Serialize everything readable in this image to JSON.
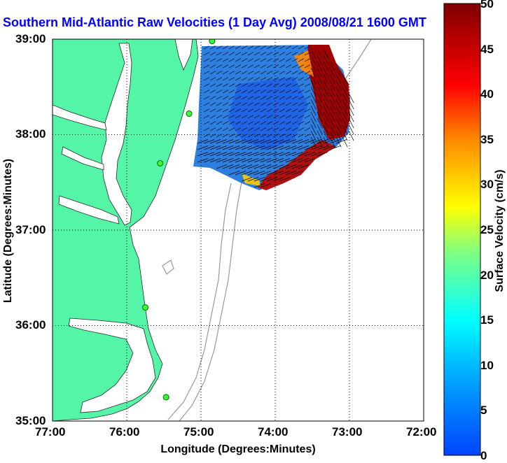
{
  "title": "Southern Mid-Atlantic Raw Velocities (1 Day Avg) 2008/08/21 1600 GMT",
  "x_axis": {
    "label": "Longitude (Degrees:Minutes)",
    "ticks": [
      "77:00",
      "76:00",
      "75:00",
      "74:00",
      "73:00",
      "72:00"
    ]
  },
  "y_axis": {
    "label": "Latitude (Degrees:Minutes)",
    "ticks": [
      "39:00",
      "38:00",
      "37:00",
      "36:00",
      "35:00"
    ]
  },
  "colorbar": {
    "label": "Surface Velocity (cm/s)",
    "min": 0,
    "max": 50,
    "ticks": [
      "50",
      "45",
      "40",
      "35",
      "30",
      "25",
      "20",
      "15",
      "10",
      "5",
      "0"
    ]
  },
  "map": {
    "lon_range": [
      -77,
      -72
    ],
    "lat_range": [
      35,
      39
    ],
    "land_color": "#55f5a8",
    "grid": "dotted",
    "radar_stations": [
      {
        "lon": -74.85,
        "lat": 38.98
      },
      {
        "lon": -75.16,
        "lat": 38.22
      },
      {
        "lon": -75.55,
        "lat": 37.7
      },
      {
        "lon": -75.75,
        "lat": 36.19
      },
      {
        "lon": -75.47,
        "lat": 35.25
      }
    ]
  }
}
